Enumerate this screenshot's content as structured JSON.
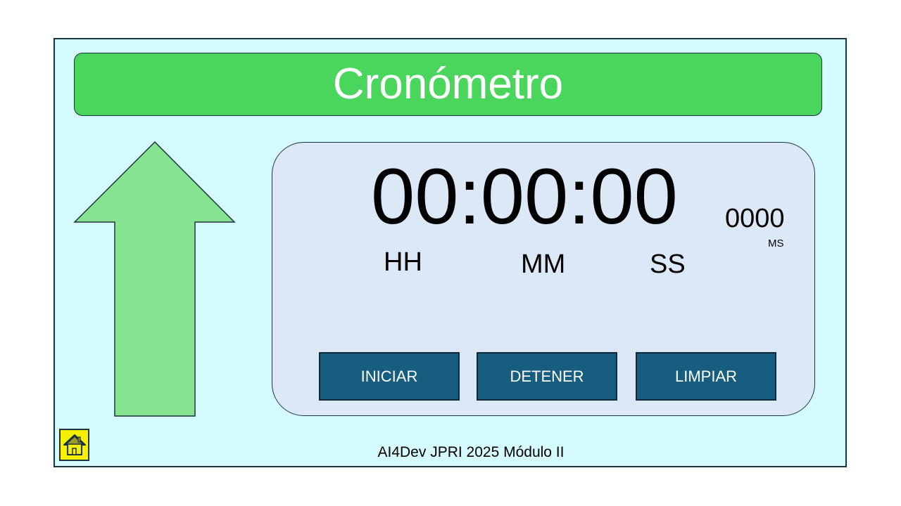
{
  "header": {
    "title": "Cronómetro"
  },
  "timer": {
    "display": "00:00:00",
    "milliseconds": "0000",
    "ms_label": "MS",
    "units": {
      "hours": "HH",
      "minutes": "MM",
      "seconds": "SS"
    }
  },
  "controls": {
    "start": "INICIAR",
    "stop": "DETENER",
    "clear": "LIMPIAR"
  },
  "footer": {
    "text": "AI4Dev JPRI 2025 Módulo II"
  },
  "icons": {
    "direction": "up-arrow-icon",
    "home": "home-icon"
  },
  "colors": {
    "title_bar": "#4ad65c",
    "background": "#d4fafd",
    "panel": "#dce8f6",
    "button": "#175d80",
    "arrow": "#86e38f",
    "home_button": "#f5f000"
  }
}
